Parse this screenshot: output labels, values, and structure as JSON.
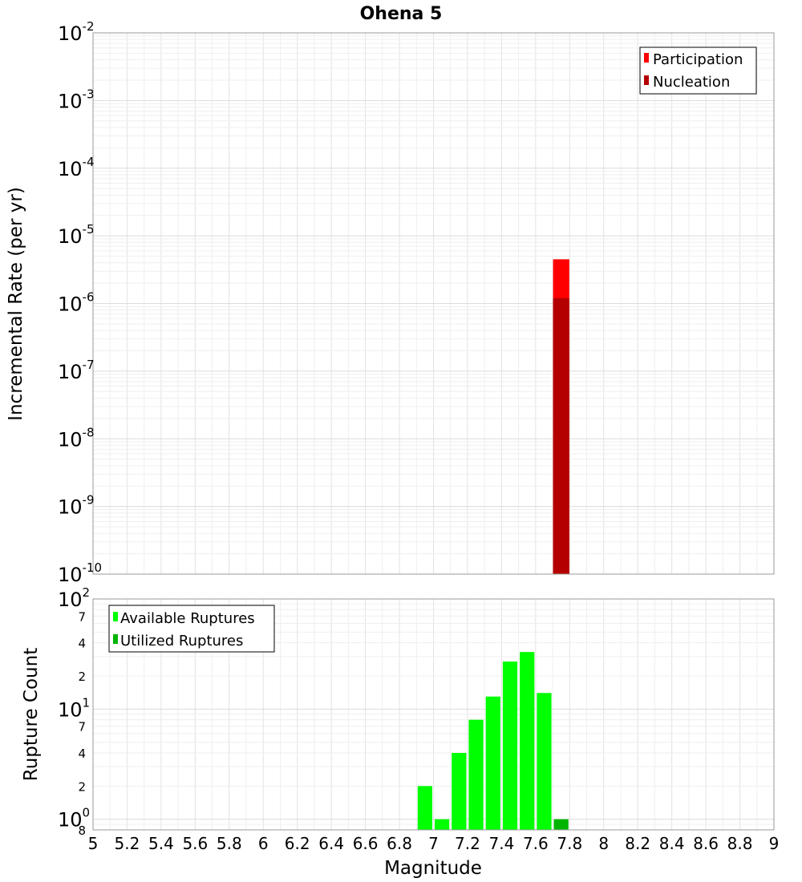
{
  "chart_data": [
    {
      "type": "bar",
      "title": "Ohena 5",
      "ylabel": "Incremental Rate (per yr)",
      "yscale": "log",
      "ylim": [
        1e-10,
        0.01
      ],
      "ytick_labels": [
        {
          "base": "10",
          "exp": "-2"
        },
        {
          "base": "10",
          "exp": "-3"
        },
        {
          "base": "10",
          "exp": "-4"
        },
        {
          "base": "10",
          "exp": "-5"
        },
        {
          "base": "10",
          "exp": "-6"
        },
        {
          "base": "10",
          "exp": "-7"
        },
        {
          "base": "10",
          "exp": "-8"
        },
        {
          "base": "10",
          "exp": "-9"
        },
        {
          "base": "10",
          "exp": "-10"
        }
      ],
      "xlim": [
        5,
        9
      ],
      "grid": true,
      "legend_position": "top-right",
      "series": [
        {
          "name": "Participation",
          "color": "#ff0000",
          "bin_width": 0.1,
          "x": [
            7.75
          ],
          "values": [
            4.5e-06
          ]
        },
        {
          "name": "Nucleation",
          "color": "#b40000",
          "bin_width": 0.1,
          "x": [
            7.75
          ],
          "values": [
            1.2e-06
          ]
        }
      ]
    },
    {
      "type": "bar",
      "ylabel": "Rupture Count",
      "xlabel": "Magnitude",
      "yscale": "log",
      "ylim": [
        0.8,
        100
      ],
      "ytick_labels": [
        {
          "base": "10",
          "exp": "2",
          "value": 100
        },
        {
          "base": "10",
          "exp": "1",
          "value": 10
        },
        {
          "base": "10",
          "exp": "0",
          "value": 1
        }
      ],
      "minor_tick_labels": [
        {
          "label": "7",
          "value": 70
        },
        {
          "label": "4",
          "value": 40
        },
        {
          "label": "2",
          "value": 20
        },
        {
          "label": "7",
          "value": 7
        },
        {
          "label": "4",
          "value": 4
        },
        {
          "label": "2",
          "value": 2
        },
        {
          "label": "8",
          "value": 0.8
        }
      ],
      "xlim": [
        5,
        9
      ],
      "xticks": [
        "5",
        "5.2",
        "5.4",
        "5.6",
        "5.8",
        "6",
        "6.2",
        "6.4",
        "6.6",
        "6.8",
        "7",
        "7.2",
        "7.4",
        "7.6",
        "7.8",
        "8",
        "8.2",
        "8.4",
        "8.6",
        "8.8",
        "9"
      ],
      "grid": true,
      "legend_position": "top-left",
      "series": [
        {
          "name": "Available Ruptures",
          "color": "#00ff00",
          "bin_width": 0.1,
          "x": [
            6.95,
            7.05,
            7.15,
            7.25,
            7.35,
            7.45,
            7.55,
            7.65
          ],
          "values": [
            2,
            1,
            4,
            8,
            13,
            27,
            33,
            14
          ]
        },
        {
          "name": "Utilized Ruptures",
          "color": "#00b400",
          "bin_width": 0.1,
          "x": [
            7.75
          ],
          "values": [
            1
          ]
        }
      ]
    }
  ]
}
